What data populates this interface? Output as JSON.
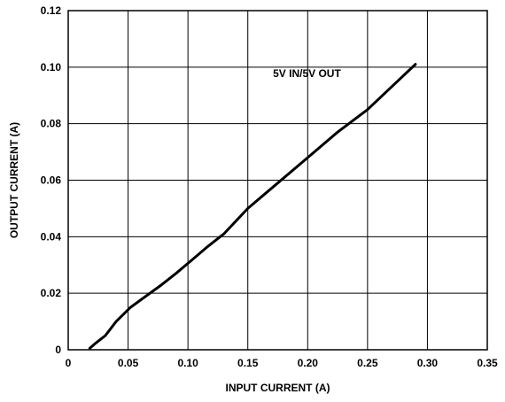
{
  "chart_data": {
    "type": "line",
    "title": "",
    "xlabel": "INPUT CURRENT (A)",
    "ylabel": "OUTPUT CURRENT (A)",
    "xlim": [
      0,
      0.35
    ],
    "ylim": [
      0,
      0.12
    ],
    "grid": true,
    "x_ticks": [
      0,
      0.05,
      0.1,
      0.15,
      0.2,
      0.25,
      0.3,
      0.35
    ],
    "x_tick_labels": [
      "0",
      "0.05",
      "0.10",
      "0.15",
      "0.20",
      "0.25",
      "0.30",
      "0.35"
    ],
    "y_ticks": [
      0,
      0.02,
      0.04,
      0.06,
      0.08,
      0.1,
      0.12
    ],
    "y_tick_labels": [
      "0",
      "0.02",
      "0.04",
      "0.06",
      "0.08",
      "0.10",
      "0.12"
    ],
    "series": [
      {
        "name": "5V IN/5V OUT",
        "x": [
          0.018,
          0.022,
          0.031,
          0.04,
          0.052,
          0.065,
          0.078,
          0.09,
          0.104,
          0.115,
          0.13,
          0.15,
          0.175,
          0.2,
          0.225,
          0.25,
          0.275,
          0.29
        ],
        "y": [
          0.0005,
          0.002,
          0.005,
          0.01,
          0.015,
          0.019,
          0.023,
          0.027,
          0.032,
          0.036,
          0.041,
          0.05,
          0.059,
          0.068,
          0.077,
          0.085,
          0.095,
          0.101
        ]
      }
    ],
    "annotations": [
      {
        "text": "5V IN/5V OUT",
        "x": 0.171,
        "y": 0.0965
      }
    ]
  }
}
